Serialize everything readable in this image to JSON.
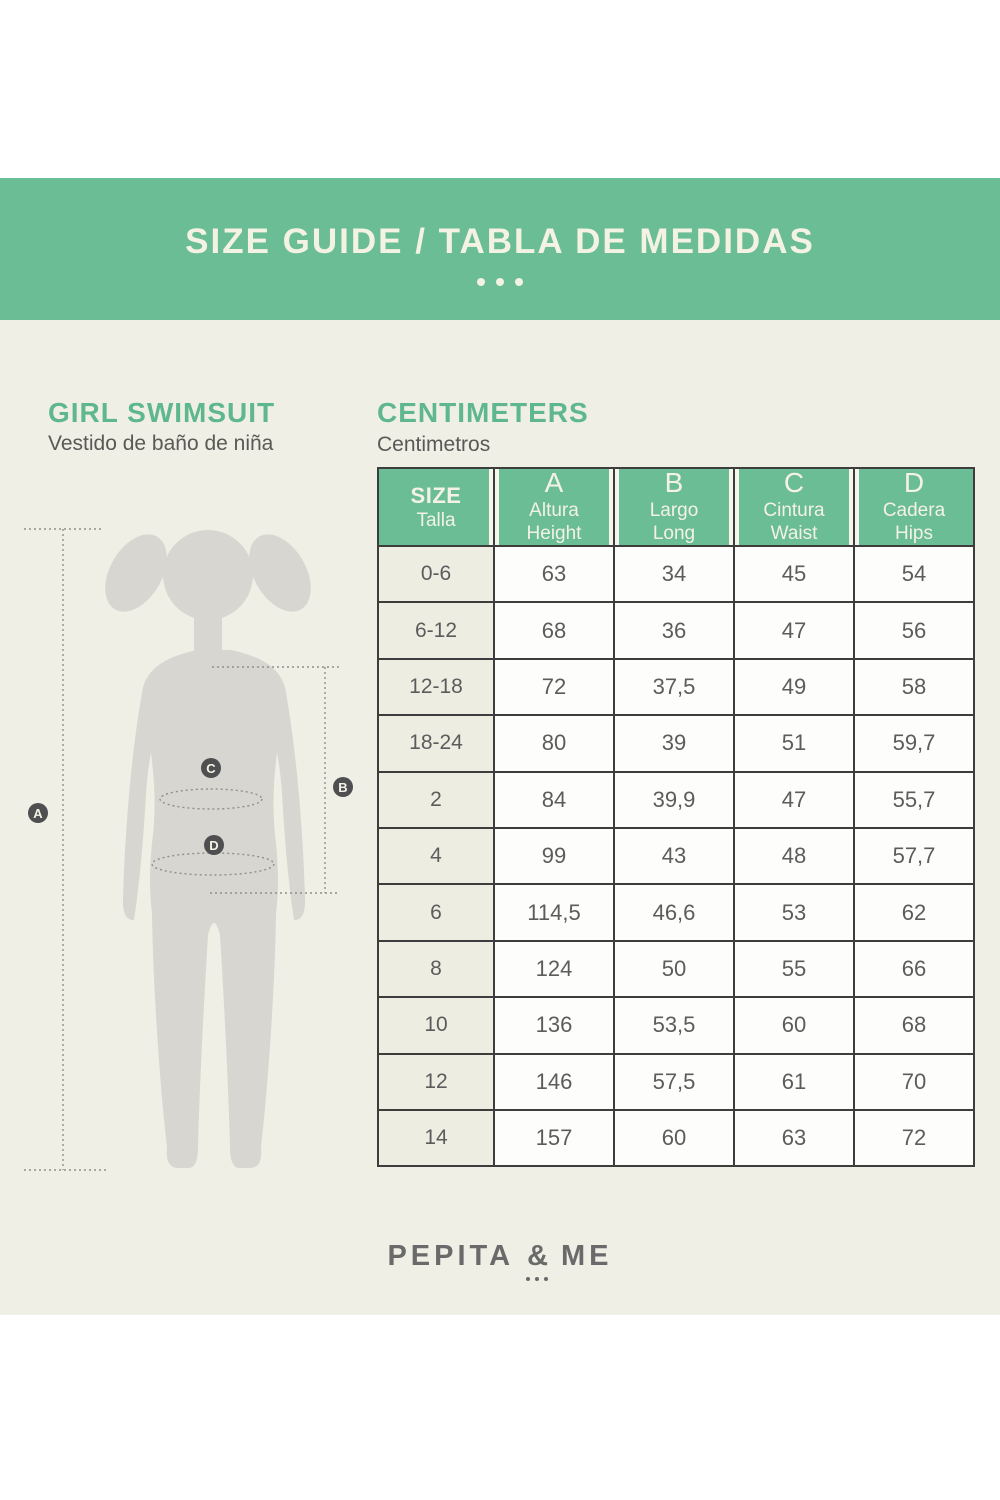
{
  "banner": {
    "title": "SIZE GUIDE / TABLA DE MEDIDAS"
  },
  "product": {
    "title": "GIRL SWIMSUIT",
    "subtitle": "Vestido de baño de niña"
  },
  "units": {
    "title": "CENTIMETERS",
    "subtitle": "Centimetros"
  },
  "figure": {
    "badges": [
      "A",
      "B",
      "C",
      "D"
    ]
  },
  "table": {
    "header": [
      {
        "title": "SIZE",
        "subtitle": "Talla"
      },
      {
        "letter": "A",
        "line1": "Altura",
        "line2": "Height"
      },
      {
        "letter": "B",
        "line1": "Largo",
        "line2": "Long"
      },
      {
        "letter": "C",
        "line1": "Cintura",
        "line2": "Waist"
      },
      {
        "letter": "D",
        "line1": "Cadera",
        "line2": "Hips"
      }
    ],
    "rows": [
      {
        "size": "0-6",
        "values": [
          "63",
          "34",
          "45",
          "54"
        ]
      },
      {
        "size": "6-12",
        "values": [
          "68",
          "36",
          "47",
          "56"
        ]
      },
      {
        "size": "12-18",
        "values": [
          "72",
          "37,5",
          "49",
          "58"
        ]
      },
      {
        "size": "18-24",
        "values": [
          "80",
          "39",
          "51",
          "59,7"
        ]
      },
      {
        "size": "2",
        "values": [
          "84",
          "39,9",
          "47",
          "55,7"
        ]
      },
      {
        "size": "4",
        "values": [
          "99",
          "43",
          "48",
          "57,7"
        ]
      },
      {
        "size": "6",
        "values": [
          "114,5",
          "46,6",
          "53",
          "62"
        ]
      },
      {
        "size": "8",
        "values": [
          "124",
          "50",
          "55",
          "66"
        ]
      },
      {
        "size": "10",
        "values": [
          "136",
          "53,5",
          "60",
          "68"
        ]
      },
      {
        "size": "12",
        "values": [
          "146",
          "57,5",
          "61",
          "70"
        ]
      },
      {
        "size": "14",
        "values": [
          "157",
          "60",
          "63",
          "72"
        ]
      }
    ]
  },
  "logo": {
    "left": "PEPITA",
    "amp": "&",
    "right": "ME"
  },
  "colors": {
    "accent_green": "#6abd94",
    "heading_green": "#5fb78d",
    "cream_background": "#f0efe5",
    "banner_text_cream": "#f4f2e3",
    "table_border": "#3d3d3d",
    "text_gray": "#5c5c5c",
    "silhouette_gray": "#d7d6d1",
    "dashed_line_gray": "#8f8f89",
    "badge_gray": "#4f4f52",
    "logo_gray": "#6a6a6a"
  }
}
